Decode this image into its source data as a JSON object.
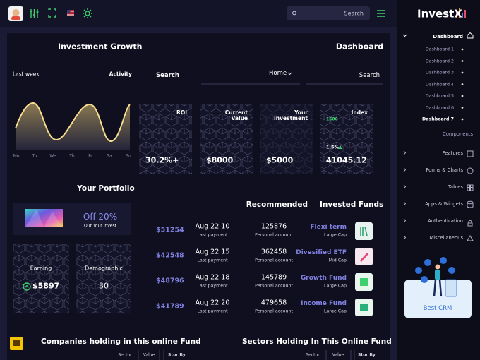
{
  "top_bar": {
    "search": "Search",
    "logo": "InvestX"
  },
  "sidebar": {
    "section": "Dashboard",
    "dashboards": [
      "Dashboard 1",
      "Dashboard 2",
      "Dashboard 3",
      "Dashboard 4",
      "Dashboard 5",
      "Dashboard 6",
      "Dashboard 7"
    ],
    "components": "Components",
    "menu": [
      "Features",
      "Forms & Charts",
      "Tables",
      "Apps & Widgets",
      "Authentication",
      "Miscellaneous"
    ],
    "promo": "Best CRM"
  },
  "main": {
    "title": "Investment Growth",
    "breadcrumb": "Dashboard",
    "activity": {
      "period": "Last week",
      "label": "Activity",
      "days": [
        "Mo",
        "Tu",
        "We",
        "Th",
        "Fr",
        "Sa",
        "Su"
      ]
    },
    "search_label": "Search",
    "home": "Home",
    "search": "Search",
    "stats": [
      {
        "label": "ROI",
        "value": "30.2%+"
      },
      {
        "label": "Current Value",
        "value": "$8000"
      },
      {
        "label": "Your Investment",
        "value": "$5000"
      },
      {
        "label": "Index",
        "value": "41045.12",
        "badge": "1500",
        "change": "1.5%"
      }
    ],
    "portfolio": {
      "title": "Your Portfolio",
      "offer": "Off 20%",
      "offer_note": "Our Your Invest",
      "earning": {
        "label": "Earning",
        "value": "$5897"
      },
      "demographic": {
        "label": "Demographic",
        "value": "30"
      }
    },
    "recommended": "Recommended",
    "invested_funds": "Invested Funds",
    "rows": [
      {
        "amount": "$51254",
        "date": "Aug 22 10",
        "date_note": "Last payment",
        "number": "125876",
        "number_note": "Personal account",
        "fund": "Flexi term",
        "cap": "Large Cap"
      },
      {
        "amount": "$42548",
        "date": "Aug 22 15",
        "date_note": "Last payment",
        "number": "362458",
        "number_note": "Personal account",
        "fund": "Divesified ETF",
        "cap": "Mid Cap"
      },
      {
        "amount": "$48796",
        "date": "Aug 22 18",
        "date_note": "Last payment",
        "number": "145789",
        "number_note": "Personal account",
        "fund": "Growth Fund",
        "cap": "Large Cap"
      },
      {
        "amount": "$41789",
        "date": "Aug 22 20",
        "date_note": "Last payment",
        "number": "479658",
        "number_note": "Personal account",
        "fund": "Income Fund",
        "cap": "Large Cap"
      }
    ],
    "bottom": {
      "companies": "Companies holding in this online Fund",
      "sectors": "Sectors Holding In This Online Fund",
      "companies_columns": [
        "Sector",
        "Value",
        "Stor By"
      ],
      "sectors_columns": [
        "Sector",
        "Value",
        "Stor By"
      ]
    }
  }
}
